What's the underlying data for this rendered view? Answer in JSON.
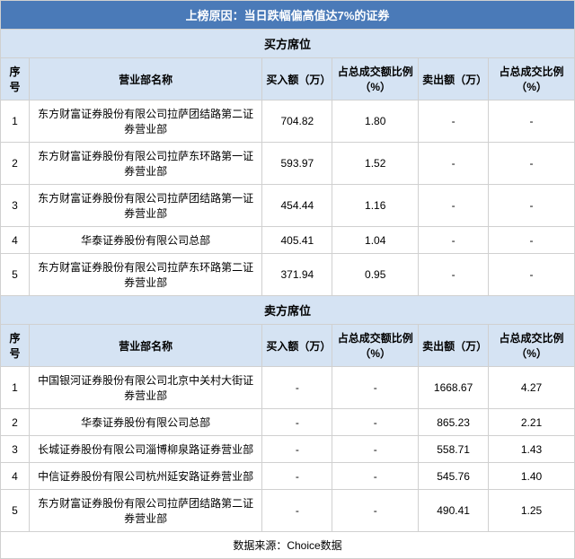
{
  "title": "上榜原因：当日跌幅偏高值达7%的证券",
  "footer": "数据来源：Choice数据",
  "colors": {
    "title_bg": "#4a7ab8",
    "title_fg": "#ffffff",
    "section_bg": "#d5e3f3",
    "border": "#d0d0d0",
    "row_bg": "#ffffff"
  },
  "buyers": {
    "section_label": "买方席位",
    "headers": {
      "idx": "序号",
      "name": "营业部名称",
      "buy_amt": "买入额（万）",
      "buy_pct": "占总成交额比例（%）",
      "sell_amt": "卖出额（万）",
      "sell_pct": "占总成交比例（%）"
    },
    "rows": [
      {
        "idx": "1",
        "name": "东方财富证券股份有限公司拉萨团结路第二证券营业部",
        "buy_amt": "704.82",
        "buy_pct": "1.80",
        "sell_amt": "-",
        "sell_pct": "-"
      },
      {
        "idx": "2",
        "name": "东方财富证券股份有限公司拉萨东环路第一证券营业部",
        "buy_amt": "593.97",
        "buy_pct": "1.52",
        "sell_amt": "-",
        "sell_pct": "-"
      },
      {
        "idx": "3",
        "name": "东方财富证券股份有限公司拉萨团结路第一证券营业部",
        "buy_amt": "454.44",
        "buy_pct": "1.16",
        "sell_amt": "-",
        "sell_pct": "-"
      },
      {
        "idx": "4",
        "name": "华泰证券股份有限公司总部",
        "buy_amt": "405.41",
        "buy_pct": "1.04",
        "sell_amt": "-",
        "sell_pct": "-"
      },
      {
        "idx": "5",
        "name": "东方财富证券股份有限公司拉萨东环路第二证券营业部",
        "buy_amt": "371.94",
        "buy_pct": "0.95",
        "sell_amt": "-",
        "sell_pct": "-"
      }
    ]
  },
  "sellers": {
    "section_label": "卖方席位",
    "headers": {
      "idx": "序号",
      "name": "营业部名称",
      "buy_amt": "买入额（万）",
      "buy_pct": "占总成交额比例（%）",
      "sell_amt": "卖出额（万）",
      "sell_pct": "占总成交比例（%）"
    },
    "rows": [
      {
        "idx": "1",
        "name": "中国银河证券股份有限公司北京中关村大街证券营业部",
        "buy_amt": "-",
        "buy_pct": "-",
        "sell_amt": "1668.67",
        "sell_pct": "4.27"
      },
      {
        "idx": "2",
        "name": "华泰证券股份有限公司总部",
        "buy_amt": "-",
        "buy_pct": "-",
        "sell_amt": "865.23",
        "sell_pct": "2.21"
      },
      {
        "idx": "3",
        "name": "长城证券股份有限公司淄博柳泉路证券营业部",
        "buy_amt": "-",
        "buy_pct": "-",
        "sell_amt": "558.71",
        "sell_pct": "1.43"
      },
      {
        "idx": "4",
        "name": "中信证券股份有限公司杭州延安路证券营业部",
        "buy_amt": "-",
        "buy_pct": "-",
        "sell_amt": "545.76",
        "sell_pct": "1.40"
      },
      {
        "idx": "5",
        "name": "东方财富证券股份有限公司拉萨团结路第二证券营业部",
        "buy_amt": "-",
        "buy_pct": "-",
        "sell_amt": "490.41",
        "sell_pct": "1.25"
      }
    ]
  }
}
